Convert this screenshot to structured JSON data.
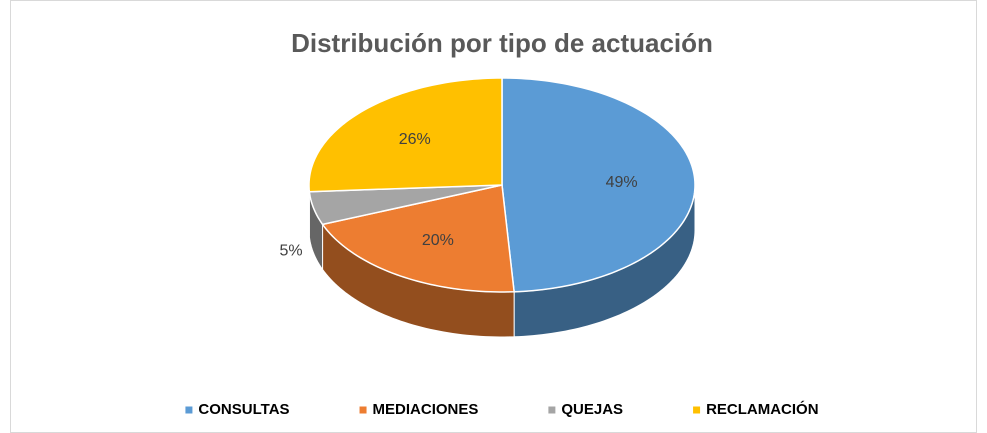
{
  "chart_data": {
    "type": "pie",
    "title": "Distribución por tipo de actuación",
    "categories": [
      "CONSULTAS",
      "MEDIACIONES",
      "QUEJAS",
      "RECLAMACIÓN"
    ],
    "values": [
      49,
      20,
      5,
      26
    ],
    "value_labels": [
      "49%",
      "20%",
      "5%",
      "26%"
    ],
    "colors": [
      "#5b9bd5",
      "#ed7d31",
      "#a5a5a5",
      "#ffc000"
    ],
    "legend": "bottom"
  }
}
